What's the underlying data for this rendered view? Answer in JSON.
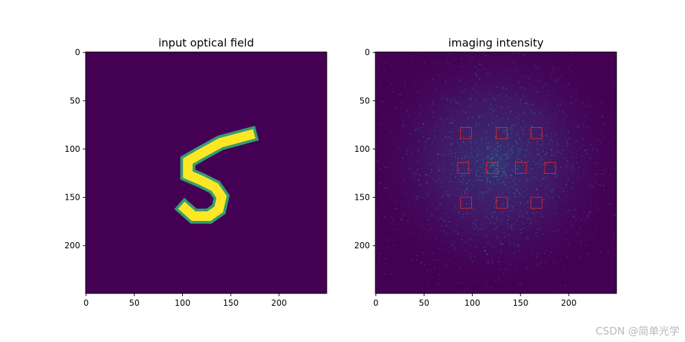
{
  "figure": {
    "panels": [
      {
        "title": "input optical field",
        "x_ticks": [
          "0",
          "50",
          "100",
          "150",
          "200"
        ],
        "y_ticks": [
          "0",
          "50",
          "100",
          "150",
          "200"
        ],
        "content": "handwritten digit 5"
      },
      {
        "title": "imaging intensity",
        "x_ticks": [
          "0",
          "50",
          "100",
          "150",
          "200"
        ],
        "y_ticks": [
          "0",
          "50",
          "100",
          "150",
          "200"
        ],
        "content": "speckle pattern with 10 red detector boxes"
      }
    ],
    "colors": {
      "background": "#440154",
      "digit_high": "#fde725",
      "digit_mid": "#35b779",
      "box": "#d62728"
    }
  },
  "watermark": "CSDN @简单光学"
}
